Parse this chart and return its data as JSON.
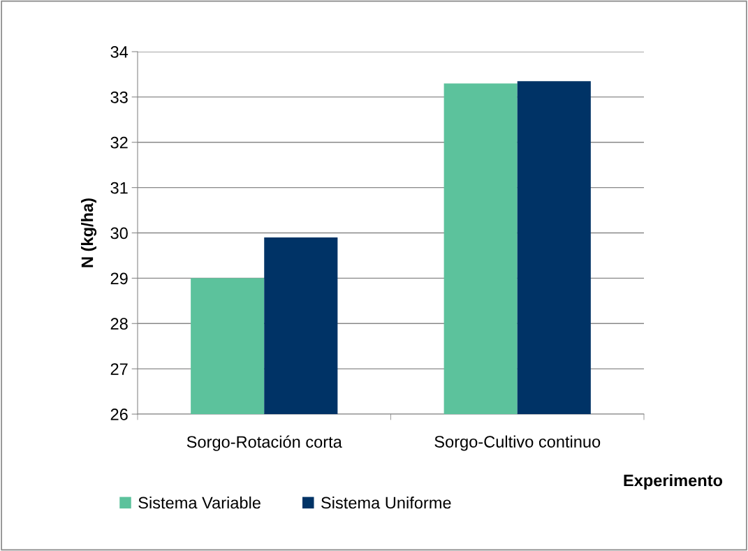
{
  "chart_data": {
    "type": "bar",
    "xlabel": "Experimento",
    "ylabel": "N (kg/ha)",
    "categories": [
      "Sorgo-Rotación corta",
      "Sorgo-Cultivo continuo"
    ],
    "series": [
      {
        "name": "Sistema Variable",
        "color": "#5cc29c",
        "values": [
          29.0,
          33.3
        ]
      },
      {
        "name": "Sistema Uniforme",
        "color": "#003366",
        "values": [
          29.9,
          33.35
        ]
      }
    ],
    "ylim": [
      26,
      34
    ],
    "yticks": [
      26,
      27,
      28,
      29,
      30,
      31,
      32,
      33,
      34
    ],
    "grid": "y",
    "legend": "bottom"
  }
}
